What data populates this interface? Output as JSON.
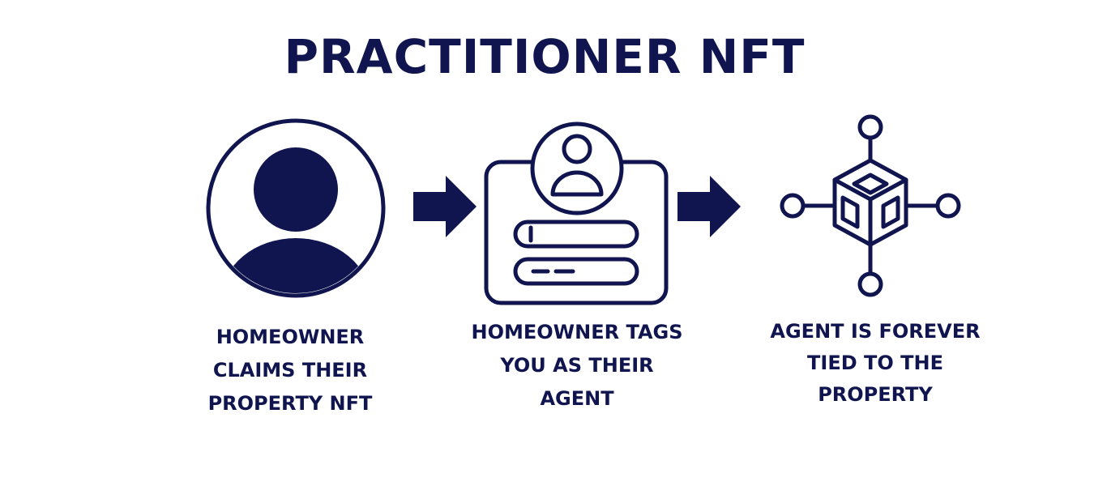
{
  "title": "PRACTITIONER NFT",
  "colors": {
    "primary": "#10154f",
    "background": "#ffffff"
  },
  "steps": [
    {
      "icon": "user-avatar-icon",
      "caption_lines": [
        "HOMEOWNER",
        "CLAIMS THEIR",
        "PROPERTY NFT"
      ]
    },
    {
      "icon": "profile-card-icon",
      "caption_lines": [
        "HOMEOWNER TAGS",
        "YOU AS THEIR",
        "AGENT"
      ]
    },
    {
      "icon": "blockchain-node-icon",
      "caption_lines": [
        "AGENT IS FOREVER",
        "TIED TO THE",
        "PROPERTY"
      ]
    }
  ],
  "connectors": [
    "arrow-right-icon",
    "arrow-right-icon"
  ]
}
